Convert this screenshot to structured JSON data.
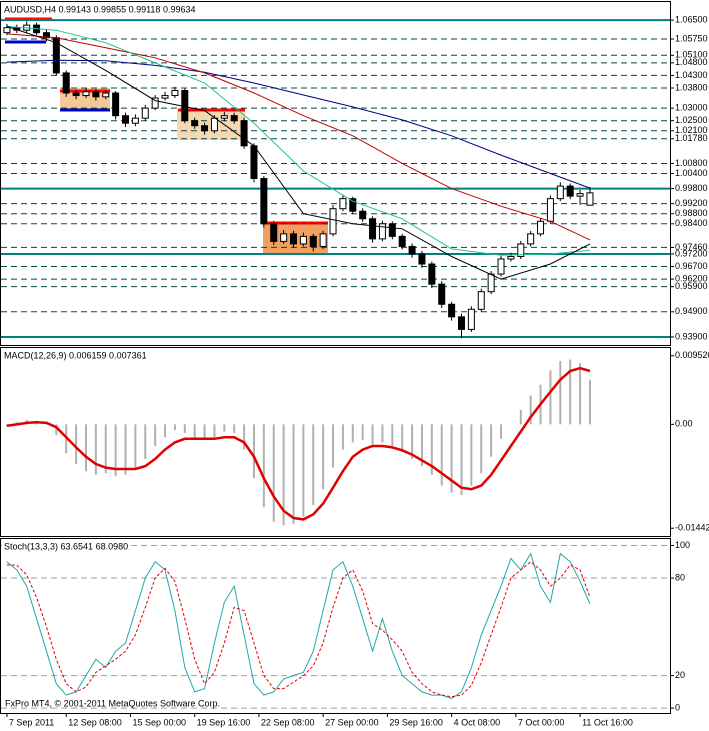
{
  "chart_data": [
    {
      "type": "candlestick",
      "title": "AUDUSD,H4 0.99143 0.99855 0.99118 0.99634",
      "xlim": [
        -0.6,
        67.1
      ],
      "ylim": [
        0.9358,
        1.0722
      ],
      "grid": true,
      "bull_color": "#ffffff",
      "bear_color": "#000000",
      "level_color": "#008080",
      "levels": [
        1.065,
        0.998,
        0.972,
        0.939
      ],
      "yticks": [
        {
          "value": 1.065,
          "label": "1.06500"
        },
        {
          "value": 1.0575,
          "label": "1.05750"
        },
        {
          "value": 1.051,
          "label": "1.05100"
        },
        {
          "value": 1.048,
          "label": "1.04800"
        },
        {
          "value": 1.043,
          "label": "1.04300"
        },
        {
          "value": 1.038,
          "label": "1.03800"
        },
        {
          "value": 1.03,
          "label": "1.03000"
        },
        {
          "value": 1.025,
          "label": "1.02500"
        },
        {
          "value": 1.021,
          "label": "1.02100"
        },
        {
          "value": 1.0178,
          "label": "1.01780"
        },
        {
          "value": 1.008,
          "label": "1.00800"
        },
        {
          "value": 1.004,
          "label": "1.00400"
        },
        {
          "value": 0.998,
          "label": "0.99800"
        },
        {
          "value": 0.992,
          "label": "0.99200"
        },
        {
          "value": 0.988,
          "label": "0.98800"
        },
        {
          "value": 0.984,
          "label": "0.98400"
        },
        {
          "value": 0.9746,
          "label": "0.97460"
        },
        {
          "value": 0.972,
          "label": "0.97200"
        },
        {
          "value": 0.967,
          "label": "0.96700"
        },
        {
          "value": 0.962,
          "label": "0.96200"
        },
        {
          "value": 0.959,
          "label": "0.95900"
        },
        {
          "value": 0.949,
          "label": "0.94900"
        },
        {
          "value": 0.939,
          "label": "0.93900"
        }
      ],
      "open": [
        1.06,
        1.062,
        1.061,
        1.063,
        1.06,
        1.058,
        1.044,
        1.036,
        1.035,
        1.0365,
        1.0345,
        1.036,
        1.027,
        1.024,
        1.026,
        1.03,
        1.034,
        1.035,
        1.037,
        1.025,
        1.023,
        1.021,
        1.026,
        1.027,
        1.025,
        1.015,
        1.002,
        0.984,
        0.977,
        0.98,
        0.976,
        0.979,
        0.975,
        0.98,
        0.99,
        0.994,
        0.989,
        0.986,
        0.978,
        0.984,
        0.979,
        0.975,
        0.972,
        0.968,
        0.96,
        0.952,
        0.947,
        0.942,
        0.95,
        0.957,
        0.964,
        0.97,
        0.971,
        0.976,
        0.98,
        0.985,
        0.994,
        0.999,
        0.995,
        0.9914
      ],
      "high": [
        1.0635,
        1.0632,
        1.0645,
        1.064,
        1.0612,
        1.059,
        1.045,
        1.0372,
        1.038,
        1.0375,
        1.0372,
        1.0368,
        1.0282,
        1.0275,
        1.0312,
        1.0352,
        1.0365,
        1.0385,
        1.0378,
        1.0262,
        1.0242,
        1.0272,
        1.0285,
        1.0282,
        1.0262,
        1.016,
        1.003,
        0.9852,
        0.9815,
        0.9812,
        0.9805,
        0.98,
        0.9812,
        0.9915,
        0.9955,
        0.9948,
        0.9902,
        0.987,
        0.9852,
        0.985,
        0.98,
        0.9762,
        0.9732,
        0.969,
        0.9612,
        0.953,
        0.9482,
        0.9512,
        0.9582,
        0.9652,
        0.9712,
        0.9725,
        0.9772,
        0.9812,
        0.9862,
        0.9952,
        1.0005,
        1.0,
        0.9975,
        0.9986
      ],
      "low": [
        1.059,
        1.0598,
        1.06,
        1.059,
        1.0565,
        1.043,
        1.0345,
        1.0335,
        1.034,
        1.033,
        1.0335,
        1.0255,
        1.0225,
        1.0228,
        1.025,
        1.0292,
        1.033,
        1.034,
        1.024,
        1.0218,
        1.0195,
        1.02,
        1.0248,
        1.0238,
        1.0138,
        1.0005,
        0.9825,
        0.9755,
        0.976,
        0.9745,
        0.975,
        0.973,
        0.974,
        0.979,
        0.989,
        0.9878,
        0.9848,
        0.9765,
        0.977,
        0.9778,
        0.9738,
        0.9705,
        0.9665,
        0.9585,
        0.9505,
        0.9455,
        0.9385,
        0.941,
        0.949,
        0.956,
        0.963,
        0.969,
        0.97,
        0.975,
        0.979,
        0.984,
        0.993,
        0.9938,
        0.9915,
        0.9912
      ],
      "close": [
        1.062,
        1.061,
        1.063,
        1.06,
        1.058,
        1.044,
        1.036,
        1.035,
        1.0365,
        1.0345,
        1.036,
        1.027,
        1.024,
        1.026,
        1.03,
        1.034,
        1.035,
        1.037,
        1.025,
        1.023,
        1.021,
        1.026,
        1.027,
        1.025,
        1.015,
        1.002,
        0.984,
        0.977,
        0.98,
        0.976,
        0.979,
        0.975,
        0.98,
        0.99,
        0.994,
        0.989,
        0.986,
        0.978,
        0.984,
        0.979,
        0.975,
        0.972,
        0.968,
        0.96,
        0.952,
        0.947,
        0.942,
        0.95,
        0.957,
        0.964,
        0.97,
        0.971,
        0.976,
        0.98,
        0.985,
        0.994,
        0.999,
        0.995,
        0.996,
        0.9963
      ],
      "series": [
        {
          "color": "#000080",
          "x": [
            0,
            5,
            10,
            15,
            20,
            25,
            30,
            35,
            40,
            45,
            50,
            55,
            59
          ],
          "values": [
            1.0483,
            1.049,
            1.0488,
            1.047,
            1.0443,
            1.04,
            1.0352,
            1.0305,
            1.0253,
            1.019,
            1.0113,
            1.004,
            0.9982
          ]
        },
        {
          "color": "#c00000",
          "x": [
            0,
            5,
            10,
            15,
            20,
            25,
            30,
            35,
            40,
            45,
            50,
            55,
            59
          ],
          "values": [
            1.0595,
            1.058,
            1.054,
            1.05,
            1.044,
            1.036,
            1.027,
            1.019,
            1.008,
            0.998,
            0.991,
            0.985,
            0.9776
          ]
        },
        {
          "color": "#20c090",
          "x": [
            0,
            5,
            10,
            15,
            20,
            25,
            30,
            35,
            40,
            45,
            50,
            55,
            59
          ],
          "values": [
            1.0625,
            1.061,
            1.056,
            1.048,
            1.04,
            1.024,
            1.005,
            0.993,
            0.986,
            0.974,
            0.9715,
            0.972,
            0.9735
          ]
        },
        {
          "color": "#000000",
          "x": [
            0,
            5,
            10,
            15,
            20,
            25,
            30,
            35,
            40,
            45,
            50,
            55,
            59
          ],
          "values": [
            1.0625,
            1.056,
            1.045,
            1.033,
            1.029,
            1.015,
            0.988,
            0.984,
            0.982,
            0.971,
            0.962,
            0.968,
            0.976
          ]
        }
      ]
    },
    {
      "type": "macd",
      "title": "MACD(12,26,9) 0.006159 0.007361",
      "xlim": [
        -0.6,
        67.1
      ],
      "ylim": [
        -0.0155,
        0.0106
      ],
      "yticks": [
        {
          "value": 0.00952,
          "label": "0.009520"
        },
        {
          "value": 0,
          "label": "0.00"
        },
        {
          "value": -0.01442,
          "label": "-0.01442"
        }
      ],
      "series": [
        {
          "color": "#b0b0b0",
          "values": [
            -0.0002,
            0.0003,
            0.0006,
            0.0005,
            0.0002,
            -0.0015,
            -0.004,
            -0.0055,
            -0.0065,
            -0.007,
            -0.0068,
            -0.0072,
            -0.007,
            -0.0062,
            -0.0048,
            -0.003,
            -0.0018,
            -0.0008,
            -0.0012,
            -0.002,
            -0.0022,
            -0.0018,
            -0.001,
            -0.0012,
            -0.0035,
            -0.0075,
            -0.0115,
            -0.0135,
            -0.014,
            -0.0138,
            -0.0128,
            -0.0112,
            -0.009,
            -0.006,
            -0.0035,
            -0.0025,
            -0.0022,
            -0.0028,
            -0.0025,
            -0.003,
            -0.0038,
            -0.0048,
            -0.0058,
            -0.007,
            -0.0085,
            -0.0095,
            -0.0098,
            -0.0085,
            -0.0068,
            -0.0045,
            -0.002,
            0.0,
            0.002,
            0.004,
            0.0055,
            0.0075,
            0.0088,
            0.009,
            0.0085,
            0.0062
          ]
        },
        {
          "color": "#e00000",
          "values": [
            -0.0002,
            0.0,
            0.0002,
            0.0003,
            0.0002,
            -0.0004,
            -0.0018,
            -0.0032,
            -0.0045,
            -0.0055,
            -0.006,
            -0.0062,
            -0.0062,
            -0.0062,
            -0.0058,
            -0.0048,
            -0.0035,
            -0.0025,
            -0.002,
            -0.002,
            -0.002,
            -0.002,
            -0.0018,
            -0.0018,
            -0.0025,
            -0.0045,
            -0.0075,
            -0.01,
            -0.012,
            -0.013,
            -0.0132,
            -0.0125,
            -0.011,
            -0.0088,
            -0.0065,
            -0.0045,
            -0.0035,
            -0.003,
            -0.003,
            -0.0032,
            -0.0036,
            -0.0042,
            -0.005,
            -0.0058,
            -0.0068,
            -0.0078,
            -0.0088,
            -0.009,
            -0.0085,
            -0.007,
            -0.005,
            -0.003,
            -0.001,
            0.001,
            0.0028,
            0.0045,
            0.0062,
            0.0074,
            0.0078,
            0.0074
          ]
        }
      ]
    },
    {
      "type": "stochastic",
      "title": "Stoch(13,3,3) 63.6541 68.0980",
      "annotation": "FxPro MT4, © 2001-2011 MetaQuotes Software Corp.",
      "xlim": [
        -0.6,
        67.1
      ],
      "ylim": [
        -3,
        104
      ],
      "grid": true,
      "yticks": [
        100,
        80,
        20,
        0
      ],
      "xticks": [
        {
          "value": 0,
          "label": "7 Sep 2011"
        },
        {
          "value": 6,
          "label": "12 Sep 08:00"
        },
        {
          "value": 12.5,
          "label": "15 Sep 00:00"
        },
        {
          "value": 19,
          "label": "19 Sep 16:00"
        },
        {
          "value": 25.5,
          "label": "22 Sep 08:00"
        },
        {
          "value": 32,
          "label": "27 Sep 00:00"
        },
        {
          "value": 38.5,
          "label": "29 Sep 16:00"
        },
        {
          "value": 45,
          "label": "4 Oct 08:00"
        },
        {
          "value": 51.5,
          "label": "7 Oct 00:00"
        },
        {
          "value": 58,
          "label": "11 Oct 16:00"
        }
      ],
      "series": [
        {
          "color": "#20a8a8",
          "values": [
            90,
            85,
            75,
            55,
            35,
            15,
            8,
            10,
            20,
            30,
            25,
            35,
            40,
            60,
            80,
            90,
            85,
            60,
            25,
            10,
            12,
            40,
            65,
            75,
            45,
            15,
            8,
            10,
            18,
            20,
            22,
            35,
            60,
            85,
            90,
            75,
            55,
            35,
            55,
            35,
            20,
            15,
            10,
            8,
            8,
            6,
            10,
            25,
            45,
            60,
            75,
            92,
            85,
            95,
            75,
            65,
            95,
            90,
            78,
            64
          ]
        },
        {
          "color": "#e00000",
          "dashed": true,
          "values": [
            88,
            88,
            82,
            68,
            50,
            30,
            15,
            10,
            13,
            22,
            26,
            30,
            35,
            45,
            62,
            80,
            86,
            78,
            55,
            30,
            15,
            22,
            40,
            62,
            60,
            40,
            20,
            12,
            12,
            16,
            20,
            26,
            40,
            62,
            80,
            85,
            72,
            52,
            48,
            42,
            35,
            22,
            15,
            10,
            8,
            7,
            8,
            14,
            28,
            45,
            62,
            80,
            85,
            90,
            85,
            75,
            80,
            88,
            85,
            68
          ]
        }
      ]
    }
  ]
}
